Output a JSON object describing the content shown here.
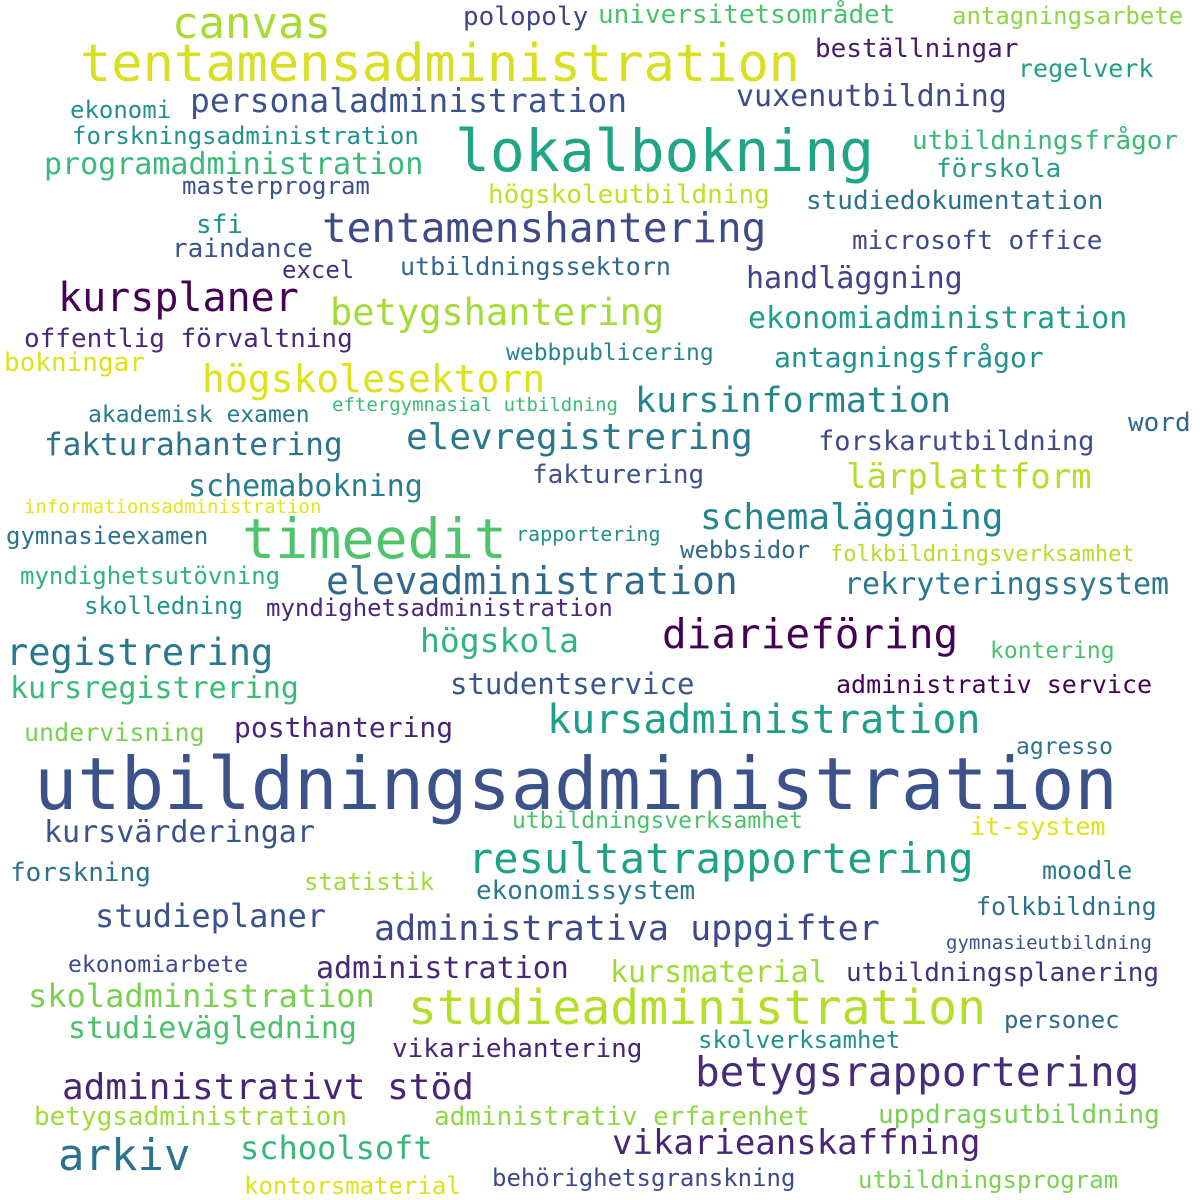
{
  "words": [
    {
      "text": "utbildningsadministration",
      "color": "#3b528b"
    },
    {
      "text": "tentamensadministration",
      "color": "#d9e021"
    },
    {
      "text": "lokalbokning",
      "color": "#21a685"
    },
    {
      "text": "timeedit",
      "color": "#50c46a"
    },
    {
      "text": "studieadministration",
      "color": "#b5de2b"
    },
    {
      "text": "resultatrapportering",
      "color": "#1fa187"
    },
    {
      "text": "canvas",
      "color": "#a8db34"
    },
    {
      "text": "betygsrapportering",
      "color": "#472c7a"
    },
    {
      "text": "kursadministration",
      "color": "#1f9e89"
    },
    {
      "text": "tentamenshantering",
      "color": "#3e4a89"
    },
    {
      "text": "elevadministration",
      "color": "#31688e"
    },
    {
      "text": "diarieföring",
      "color": "#440154"
    },
    {
      "text": "arkiv",
      "color": "#2c728e"
    },
    {
      "text": "högskolesektorn",
      "color": "#dde318"
    },
    {
      "text": "kursplaner",
      "color": "#440154"
    },
    {
      "text": "administrativa uppgifter",
      "color": "#3e4a89"
    },
    {
      "text": "schemaläggning",
      "color": "#25858e"
    },
    {
      "text": "administrativt stöd",
      "color": "#482475"
    },
    {
      "text": "elevregistrering",
      "color": "#2a788e"
    },
    {
      "text": "personaladministration",
      "color": "#3b528b"
    },
    {
      "text": "betygshantering",
      "color": "#a5db36"
    },
    {
      "text": "kursinformation",
      "color": "#25858e"
    },
    {
      "text": "registrering",
      "color": "#2a788e"
    },
    {
      "text": "vikarieanskaffning",
      "color": "#482677"
    },
    {
      "text": "studieplaner",
      "color": "#3b528b"
    },
    {
      "text": "schoolsoft",
      "color": "#35b779"
    },
    {
      "text": "skoladministration",
      "color": "#7ad151"
    },
    {
      "text": "programadministration",
      "color": "#3aba76"
    },
    {
      "text": "lärplattform",
      "color": "#b5de2b"
    },
    {
      "text": "vuxenutbildning",
      "color": "#3e4a89"
    },
    {
      "text": "ekonomiadministration",
      "color": "#1f9e89"
    },
    {
      "text": "högskola",
      "color": "#2fb47c"
    },
    {
      "text": "fakturahantering",
      "color": "#2c728e"
    },
    {
      "text": "kursvärderingar",
      "color": "#3b528b"
    },
    {
      "text": "administration",
      "color": "#482878"
    },
    {
      "text": "studievägledning",
      "color": "#4ac16d"
    },
    {
      "text": "kursregistrering",
      "color": "#3aba76"
    },
    {
      "text": "handläggning",
      "color": "#414487"
    },
    {
      "text": "rekryteringssystem",
      "color": "#2a788e"
    },
    {
      "text": "kursmaterial",
      "color": "#a0da39"
    },
    {
      "text": "schemabokning",
      "color": "#277f8e"
    },
    {
      "text": "studentservice",
      "color": "#39568c"
    },
    {
      "text": "antagningsfrågor",
      "color": "#21918c"
    },
    {
      "text": "forskarutbildning",
      "color": "#3e4a89"
    },
    {
      "text": "posthantering",
      "color": "#482475"
    },
    {
      "text": "utbildningsplanering",
      "color": "#472f7d"
    },
    {
      "text": "utbildningsfrågor",
      "color": "#3aba76"
    },
    {
      "text": "fakturering",
      "color": "#3b528b"
    },
    {
      "text": "beställningar",
      "color": "#481a6c"
    },
    {
      "text": "ekonomissystem",
      "color": "#2a788e"
    },
    {
      "text": "betygsadministration",
      "color": "#a0da39"
    },
    {
      "text": "administrativ erfarenhet",
      "color": "#8fd744"
    },
    {
      "text": "uppdragsutbildning",
      "color": "#7ad151"
    },
    {
      "text": "vikariehantering",
      "color": "#482677"
    },
    {
      "text": "polopoly",
      "color": "#414487"
    },
    {
      "text": "universitetsområdet",
      "color": "#4ac16d"
    },
    {
      "text": "antagningsarbete",
      "color": "#8fd744"
    },
    {
      "text": "regelverk",
      "color": "#1f9e89"
    },
    {
      "text": "ekonomi",
      "color": "#21918c"
    },
    {
      "text": "forskningsadministration",
      "color": "#21918c"
    },
    {
      "text": "förskola",
      "color": "#2a9d8a"
    },
    {
      "text": "masterprogram",
      "color": "#3b528b"
    },
    {
      "text": "högskoleutbildning",
      "color": "#c2df23"
    },
    {
      "text": "studiedokumentation",
      "color": "#2c728e"
    },
    {
      "text": "sfi",
      "color": "#21918c"
    },
    {
      "text": "raindance",
      "color": "#3b528b"
    },
    {
      "text": "microsoft office",
      "color": "#3e4a89"
    },
    {
      "text": "excel",
      "color": "#472f7d"
    },
    {
      "text": "utbildningssektorn",
      "color": "#31688e"
    },
    {
      "text": "offentlig förvaltning",
      "color": "#482878"
    },
    {
      "text": "bokningar",
      "color": "#dde318"
    },
    {
      "text": "webbpublicering",
      "color": "#25858e"
    },
    {
      "text": "akademisk examen",
      "color": "#2a788e"
    },
    {
      "text": "eftergymnasial utbildning",
      "color": "#3aba76"
    },
    {
      "text": "word",
      "color": "#31688e"
    },
    {
      "text": "informationsadministration",
      "color": "#e5e419"
    },
    {
      "text": "gymnasieexamen",
      "color": "#2c728e"
    },
    {
      "text": "rapportering",
      "color": "#21918c"
    },
    {
      "text": "webbsidor",
      "color": "#31688e"
    },
    {
      "text": "folkbildningsverksamhet",
      "color": "#b5de2b"
    },
    {
      "text": "myndighetsutövning",
      "color": "#2fb47c"
    },
    {
      "text": "skolledning",
      "color": "#21918c"
    },
    {
      "text": "myndighetsadministration",
      "color": "#482878"
    },
    {
      "text": "kontering",
      "color": "#4ac16d"
    },
    {
      "text": "administrativ service",
      "color": "#440154"
    },
    {
      "text": "undervisning",
      "color": "#7ad151"
    },
    {
      "text": "agresso",
      "color": "#2c728e"
    },
    {
      "text": "utbildningsverksamhet",
      "color": "#4ac16d"
    },
    {
      "text": "it-system",
      "color": "#dde318"
    },
    {
      "text": "forskning",
      "color": "#2c728e"
    },
    {
      "text": "statistik",
      "color": "#a0da39"
    },
    {
      "text": "moodle",
      "color": "#2a788e"
    },
    {
      "text": "folkbildning",
      "color": "#2c728e"
    },
    {
      "text": "gymnasieutbildning",
      "color": "#3b528b"
    },
    {
      "text": "ekonomiarbete",
      "color": "#3e4a89"
    },
    {
      "text": "personec",
      "color": "#31688e"
    },
    {
      "text": "skolverksamhet",
      "color": "#21918c"
    },
    {
      "text": "behörighetsgranskning",
      "color": "#3e4a89"
    },
    {
      "text": "utbildningsprogram",
      "color": "#7ad151"
    },
    {
      "text": "kontorsmaterial",
      "color": "#dde318"
    }
  ]
}
